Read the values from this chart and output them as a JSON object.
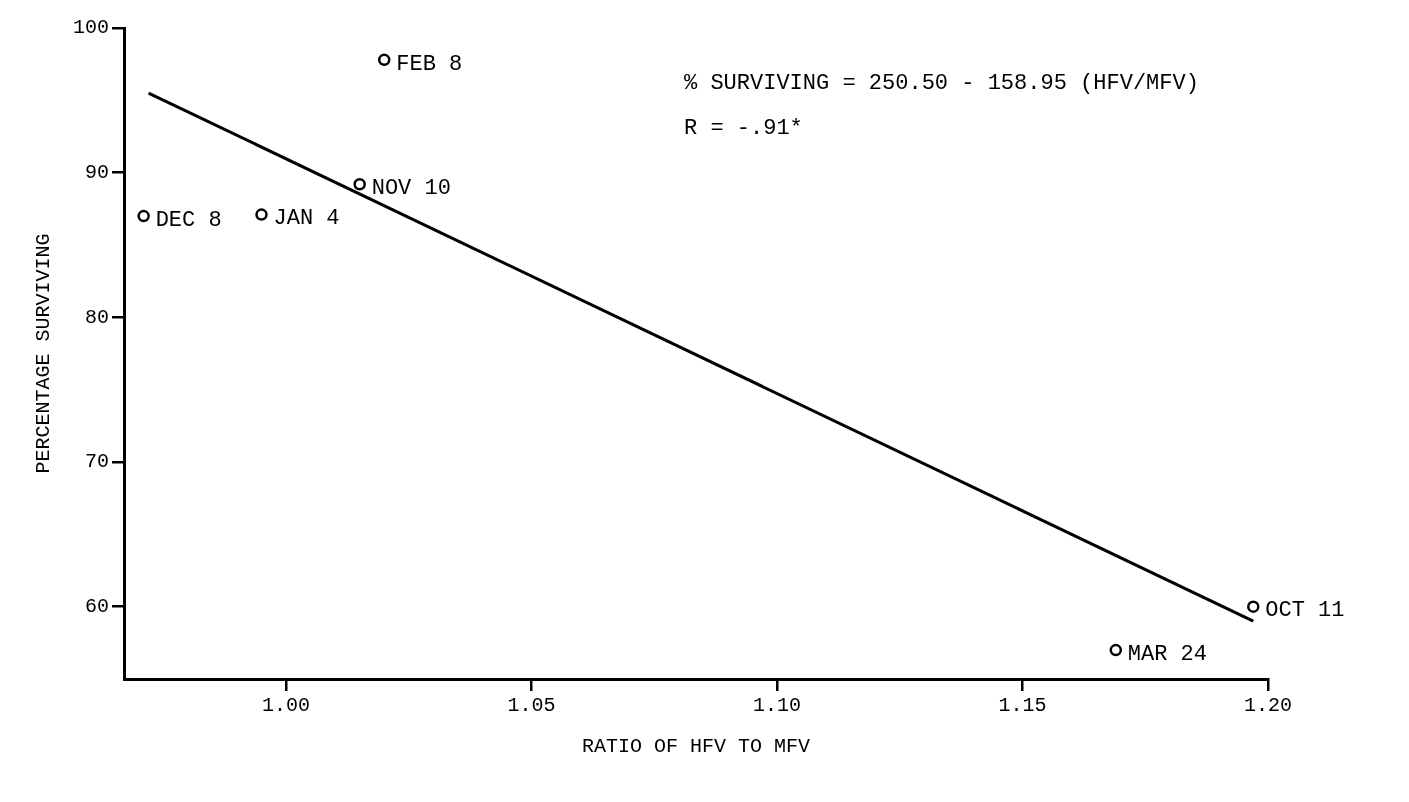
{
  "chart_data": {
    "type": "scatter",
    "xlabel": "RATIO OF HFV TO MFV",
    "ylabel": "PERCENTAGE SURVIVING",
    "xlim": [
      0.967,
      1.2
    ],
    "xticks": [
      {
        "value": 1.0,
        "label": "1.00"
      },
      1.05,
      {
        "value": 1.1,
        "label": "1.10"
      },
      1.15,
      {
        "value": 1.2,
        "label": "1.20"
      }
    ],
    "ylim": [
      55,
      100
    ],
    "yticks": [
      60,
      70,
      80,
      90,
      100
    ],
    "grid": false,
    "legend": false,
    "marker": "circle",
    "series": [
      {
        "type": "scatter",
        "color": "#000000",
        "x": [
          1.02,
          1.015,
          0.971,
          0.995,
          1.169,
          1.197
        ],
        "values": [
          97.8,
          89.2,
          87.0,
          87.1,
          57.0,
          60.0
        ]
      },
      {
        "type": "line",
        "color": "#000000",
        "marker": "none",
        "line_style": "solid",
        "x": [
          0.972,
          1.197
        ],
        "values": [
          95.5,
          59.0
        ]
      }
    ],
    "annotations": [
      {
        "text": "FEB 8",
        "x": 1.02,
        "y": 97.8
      },
      {
        "text": "NOV 10",
        "x": 1.015,
        "y": 89.2
      },
      {
        "text": "DEC 8",
        "x": 0.971,
        "y": 87.0
      },
      {
        "text": "JAN 4",
        "x": 0.995,
        "y": 87.1
      },
      {
        "text": "MAR 24",
        "x": 1.169,
        "y": 57.0
      },
      {
        "text": "OCT 11",
        "x": 1.197,
        "y": 60.0
      },
      "% SURVIVING = 250.50 - 158.95 (HFV/MFV)",
      "R = -.91*"
    ]
  }
}
